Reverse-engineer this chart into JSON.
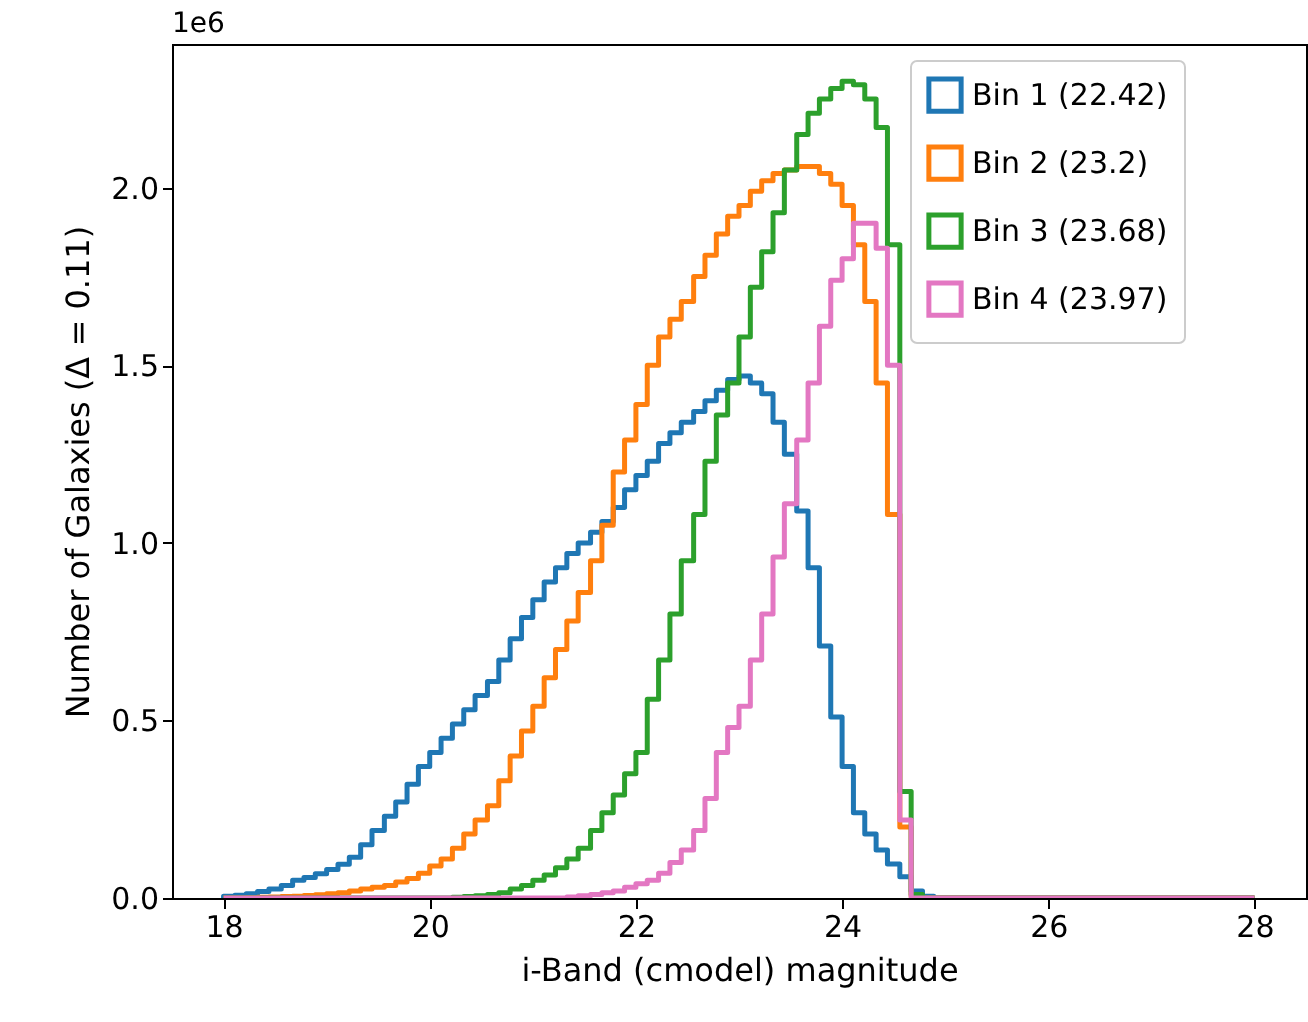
{
  "chart_data": {
    "type": "histogram",
    "xlabel": "i-Band (cmodel) magnitude",
    "ylabel": "Number of Galaxies (Δ = 0.11)",
    "annotations": [
      "1e6"
    ],
    "bins": [
      18,
      18.11,
      18.22,
      18.33,
      18.44,
      18.56,
      18.67,
      18.78,
      18.89,
      19,
      19.11,
      19.22,
      19.33,
      19.44,
      19.56,
      19.67,
      19.78,
      19.89,
      20,
      20.11,
      20.22,
      20.33,
      20.44,
      20.56,
      20.67,
      20.78,
      20.89,
      21,
      21.11,
      21.22,
      21.33,
      21.44,
      21.56,
      21.67,
      21.78,
      21.89,
      22,
      22.11,
      22.22,
      22.33,
      22.44,
      22.56,
      22.67,
      22.78,
      22.89,
      23,
      23.11,
      23.22,
      23.33,
      23.44,
      23.56,
      23.67,
      23.78,
      23.89,
      24,
      24.11,
      24.22,
      24.33,
      24.44,
      24.56,
      24.67,
      24.78,
      24.89,
      25,
      25.11,
      25.22,
      25.33,
      25.44,
      25.56,
      25.67,
      25.78,
      25.89,
      26,
      26.11,
      26.22,
      26.33,
      26.44,
      26.56,
      26.67,
      26.78,
      26.89,
      27,
      27.11,
      27.22,
      27.33,
      27.44,
      27.56,
      27.67,
      27.78,
      27.89,
      28
    ],
    "series": [
      {
        "name": "Bin 1 (22.42)",
        "color": "#1f77b4",
        "values": [
          0.005,
          0.008,
          0.012,
          0.018,
          0.025,
          0.035,
          0.05,
          0.058,
          0.068,
          0.08,
          0.095,
          0.115,
          0.15,
          0.19,
          0.23,
          0.27,
          0.32,
          0.37,
          0.41,
          0.45,
          0.49,
          0.53,
          0.57,
          0.61,
          0.67,
          0.73,
          0.79,
          0.84,
          0.89,
          0.93,
          0.97,
          1.0,
          1.03,
          1.06,
          1.1,
          1.15,
          1.19,
          1.23,
          1.28,
          1.31,
          1.34,
          1.37,
          1.4,
          1.43,
          1.46,
          1.47,
          1.45,
          1.42,
          1.34,
          1.25,
          1.09,
          0.93,
          0.71,
          0.51,
          0.37,
          0.24,
          0.18,
          0.135,
          0.096,
          0.06,
          0.02,
          0.005,
          0,
          0,
          0,
          0,
          0,
          0,
          0,
          0,
          0,
          0,
          0,
          0,
          0,
          0,
          0,
          0,
          0,
          0,
          0,
          0,
          0,
          0,
          0,
          0,
          0,
          0,
          0,
          0
        ]
      },
      {
        "name": "Bin 2 (23.2)",
        "color": "#ff7f0e",
        "values": [
          0,
          0,
          0.001,
          0.002,
          0.003,
          0.004,
          0.005,
          0.007,
          0.009,
          0.012,
          0.015,
          0.02,
          0.025,
          0.03,
          0.035,
          0.045,
          0.055,
          0.07,
          0.09,
          0.11,
          0.14,
          0.18,
          0.22,
          0.26,
          0.33,
          0.4,
          0.47,
          0.54,
          0.62,
          0.7,
          0.78,
          0.86,
          0.95,
          1.05,
          1.2,
          1.29,
          1.39,
          1.5,
          1.58,
          1.63,
          1.68,
          1.75,
          1.81,
          1.87,
          1.92,
          1.95,
          1.99,
          2.02,
          2.04,
          2.05,
          2.06,
          2.06,
          2.04,
          2.01,
          1.95,
          1.84,
          1.68,
          1.45,
          1.08,
          0.2,
          0.005,
          0,
          0,
          0,
          0,
          0,
          0,
          0,
          0,
          0,
          0,
          0,
          0,
          0,
          0,
          0,
          0,
          0,
          0,
          0,
          0,
          0,
          0,
          0,
          0,
          0,
          0,
          0,
          0,
          0
        ]
      },
      {
        "name": "Bin 3 (23.68)",
        "color": "#2ca02c",
        "values": [
          0,
          0,
          0,
          0,
          0,
          0,
          0,
          0,
          0,
          0,
          0,
          0,
          0,
          0,
          0,
          0,
          0,
          0,
          0,
          0,
          0.002,
          0.004,
          0.006,
          0.01,
          0.015,
          0.025,
          0.035,
          0.05,
          0.065,
          0.085,
          0.11,
          0.14,
          0.19,
          0.24,
          0.29,
          0.35,
          0.41,
          0.56,
          0.67,
          0.8,
          0.95,
          1.08,
          1.23,
          1.36,
          1.45,
          1.58,
          1.72,
          1.82,
          1.93,
          2.05,
          2.15,
          2.21,
          2.25,
          2.28,
          2.3,
          2.29,
          2.25,
          2.17,
          1.84,
          0.3,
          0.01,
          0,
          0,
          0,
          0,
          0,
          0,
          0,
          0,
          0,
          0,
          0,
          0,
          0,
          0,
          0,
          0,
          0,
          0,
          0,
          0,
          0,
          0,
          0,
          0,
          0,
          0,
          0,
          0,
          0
        ]
      },
      {
        "name": "Bin 4 (23.97)",
        "color": "#e377c2",
        "values": [
          0,
          0,
          0,
          0,
          0,
          0,
          0,
          0,
          0,
          0,
          0,
          0,
          0,
          0,
          0,
          0,
          0,
          0,
          0,
          0,
          0,
          0,
          0,
          0,
          0,
          0,
          0,
          0,
          0,
          0,
          0.003,
          0.006,
          0.01,
          0.015,
          0.02,
          0.03,
          0.04,
          0.05,
          0.07,
          0.1,
          0.135,
          0.19,
          0.28,
          0.41,
          0.48,
          0.54,
          0.67,
          0.8,
          0.96,
          1.11,
          1.29,
          1.45,
          1.61,
          1.74,
          1.8,
          1.9,
          1.9,
          1.83,
          1.5,
          0.22,
          0,
          0,
          0,
          0,
          0,
          0,
          0,
          0,
          0,
          0,
          0,
          0,
          0,
          0,
          0,
          0,
          0,
          0,
          0,
          0,
          0,
          0,
          0,
          0,
          0,
          0,
          0,
          0,
          0,
          0
        ]
      }
    ],
    "xlim": [
      17.5,
      28.5
    ],
    "xticks": [
      18,
      20,
      22,
      24,
      26,
      28
    ],
    "ylim": [
      0,
      2.405
    ],
    "yticks": [
      {
        "value": 0,
        "label": "0.0"
      },
      {
        "value": 0.5,
        "label": "0.5"
      },
      {
        "value": 1,
        "label": "1.0"
      },
      {
        "value": 1.5,
        "label": "1.5"
      },
      {
        "value": 2,
        "label": "2.0"
      }
    ],
    "grid": false,
    "legend": "top right"
  }
}
